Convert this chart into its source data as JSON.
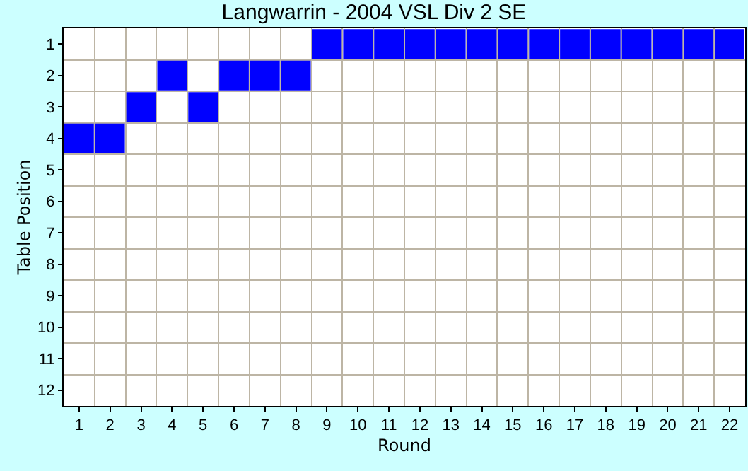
{
  "chart_data": {
    "type": "scatter",
    "title": "Langwarrin - 2004 VSL Div 2 SE",
    "xlabel": "Round",
    "ylabel": "Table Position",
    "x": [
      1,
      2,
      3,
      4,
      5,
      6,
      7,
      8,
      9,
      10,
      11,
      12,
      13,
      14,
      15,
      16,
      17,
      18,
      19,
      20,
      21,
      22
    ],
    "xlim": [
      0.5,
      22.5
    ],
    "xticks": [
      1,
      2,
      3,
      4,
      5,
      6,
      7,
      8,
      9,
      10,
      11,
      12,
      13,
      14,
      15,
      16,
      17,
      18,
      19,
      20,
      21,
      22
    ],
    "ylim": [
      12.5,
      0.5
    ],
    "yticks": [
      1,
      2,
      3,
      4,
      5,
      6,
      7,
      8,
      9,
      10,
      11,
      12
    ],
    "series": [
      {
        "color": "#0000ff",
        "values": [
          4,
          4,
          3,
          2,
          3,
          2,
          2,
          2,
          1,
          1,
          1,
          1,
          1,
          1,
          1,
          1,
          1,
          1,
          1,
          1,
          1,
          1
        ]
      }
    ],
    "marker": "square",
    "grid": true,
    "legend": false
  }
}
